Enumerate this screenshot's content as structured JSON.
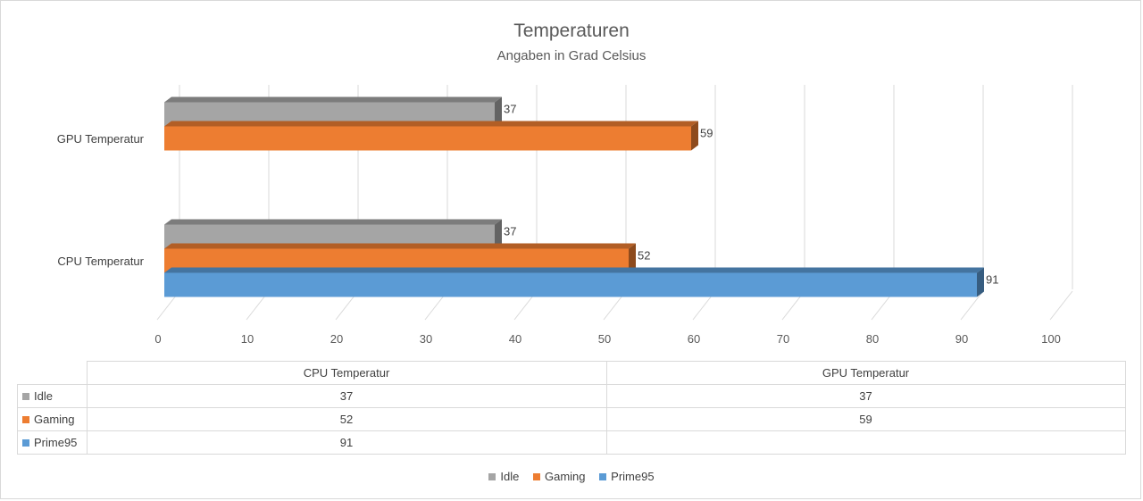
{
  "chart_data": {
    "type": "bar",
    "orientation": "horizontal",
    "title": "Temperaturen",
    "subtitle": "Angaben in Grad Celsius",
    "categories": [
      "CPU Temperatur",
      "GPU Temperatur"
    ],
    "series": [
      {
        "name": "Idle",
        "color": "#a5a5a5",
        "values": [
          37,
          37
        ]
      },
      {
        "name": "Gaming",
        "color": "#ed7d31",
        "values": [
          52,
          59
        ]
      },
      {
        "name": "Prime95",
        "color": "#5b9bd5",
        "values": [
          91,
          null
        ]
      }
    ],
    "xlim": [
      0,
      100
    ],
    "x_ticks": [
      "0",
      "10",
      "20",
      "30",
      "40",
      "50",
      "60",
      "70",
      "80",
      "90",
      "100"
    ],
    "grid": true,
    "legend": "bottom",
    "data_table": true
  },
  "table": {
    "headers": [
      "CPU Temperatur",
      "GPU Temperatur"
    ],
    "rows": [
      {
        "name": "Idle",
        "color": "#a5a5a5",
        "cells": [
          "37",
          "37"
        ]
      },
      {
        "name": "Gaming",
        "color": "#ed7d31",
        "cells": [
          "52",
          "59"
        ]
      },
      {
        "name": "Prime95",
        "color": "#5b9bd5",
        "cells": [
          "91",
          ""
        ]
      }
    ]
  },
  "legend": {
    "items": [
      {
        "name": "Idle",
        "color": "#a5a5a5"
      },
      {
        "name": "Gaming",
        "color": "#ed7d31"
      },
      {
        "name": "Prime95",
        "color": "#5b9bd5"
      }
    ]
  }
}
